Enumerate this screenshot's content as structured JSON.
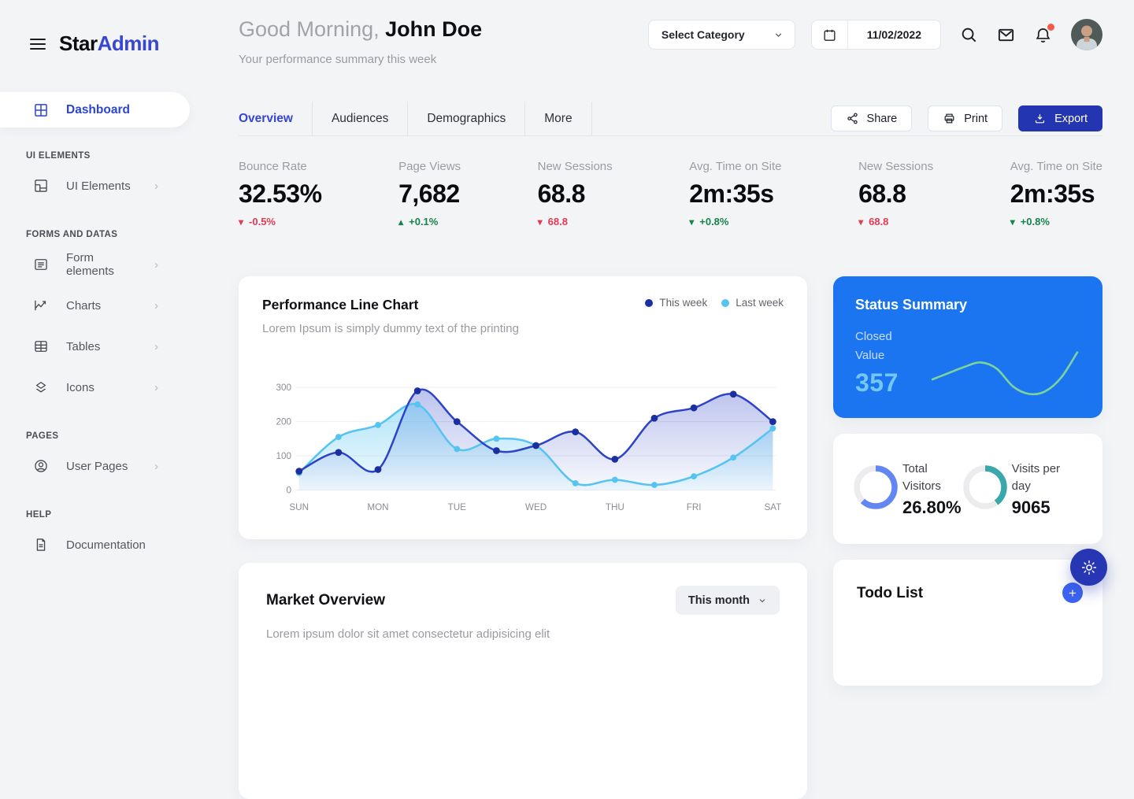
{
  "colors": {
    "accent": "#3646d3",
    "brand_blue": "#3747d2",
    "export_blue": "#2435b1",
    "status_card_blue": "#1c75f0",
    "status_value_blue": "#74c7f2",
    "sparkline_green": "#7cd39b",
    "donut_blue": "#6287f2",
    "donut_teal": "#3aa7ab",
    "negative_red": "#e23a55",
    "positive_green": "#17834d",
    "notification_dot": "#f45b46",
    "page_bg": "#f3f4f6"
  },
  "brand": {
    "star": "Star",
    "admin": "Admin"
  },
  "sidebar": {
    "active_item": {
      "label": "Dashboard",
      "icon": "dashboard-icon"
    },
    "chevron_glyph": "›",
    "sections": [
      {
        "label": "UI ELEMENTS",
        "items": [
          {
            "label": "UI Elements",
            "icon": "ui-elements-icon",
            "has_chevron": true
          }
        ]
      },
      {
        "label": "FORMS AND DATAS",
        "items": [
          {
            "label": "Form elements",
            "icon": "form-elements-icon",
            "has_chevron": true
          },
          {
            "label": "Charts",
            "icon": "charts-icon",
            "has_chevron": true
          },
          {
            "label": "Tables",
            "icon": "tables-icon",
            "has_chevron": true
          },
          {
            "label": "Icons",
            "icon": "icons-icon",
            "has_chevron": true
          }
        ]
      },
      {
        "label": "PAGES",
        "items": [
          {
            "label": "User Pages",
            "icon": "user-pages-icon",
            "has_chevron": true
          }
        ]
      },
      {
        "label": "HELP",
        "items": [
          {
            "label": "Documentation",
            "icon": "documentation-icon",
            "has_chevron": false
          }
        ]
      }
    ]
  },
  "header": {
    "greeting_prefix": "Good Morning,",
    "user_name": "John Doe",
    "subtitle": "Your performance summary this week",
    "category_select": {
      "value": "Select Category"
    },
    "date_field": {
      "value": "11/02/2022"
    }
  },
  "toolbar": {
    "tabs": [
      {
        "label": "Overview",
        "active": true
      },
      {
        "label": "Audiences",
        "active": false
      },
      {
        "label": "Demographics",
        "active": false
      },
      {
        "label": "More",
        "active": false
      }
    ],
    "share_label": "Share",
    "print_label": "Print",
    "export_label": "Export"
  },
  "stats": [
    {
      "label": "Bounce Rate",
      "value": "32.53%",
      "arrow": "▾",
      "change": "-0.5%",
      "tone": "negative"
    },
    {
      "label": "Page Views",
      "value": "7,682",
      "arrow": "▴",
      "change": "+0.1%",
      "tone": "positive"
    },
    {
      "label": "New Sessions",
      "value": "68.8",
      "arrow": "▾",
      "change": "68.8",
      "tone": "negative"
    },
    {
      "label": "Avg. Time on Site",
      "value": "2m:35s",
      "arrow": "▾",
      "change": "+0.8%",
      "tone": "positive"
    },
    {
      "label": "New Sessions",
      "value": "68.8",
      "arrow": "▾",
      "change": "68.8",
      "tone": "negative"
    },
    {
      "label": "Avg. Time on Site",
      "value": "2m:35s",
      "arrow": "▾",
      "change": "+0.8%",
      "tone": "positive"
    }
  ],
  "cards": {
    "performance": {
      "title": "Performance Line Chart",
      "subtitle": "Lorem Ipsum is simply dummy text of the printing",
      "legend": [
        {
          "label": "This week"
        },
        {
          "label": "Last week"
        }
      ]
    },
    "status": {
      "title": "Status Summary",
      "label_line1": "Closed",
      "label_line2": "Value",
      "value": "357"
    },
    "visitors": {
      "donut1": {
        "label": "Total Visitors",
        "value": "26.80%"
      },
      "donut2": {
        "label": "Visits per day",
        "value": "9065"
      }
    },
    "market": {
      "title": "Market Overview",
      "filter_value": "This month",
      "subtitle": "Lorem ipsum dolor sit amet consectetur adipisicing elit"
    },
    "todo": {
      "title": "Todo List",
      "add_glyph": "+"
    }
  },
  "chart_data": [
    {
      "id": "performance-line",
      "type": "line",
      "title": "Performance Line Chart",
      "x_labels": [
        "SUN",
        "MON",
        "TUE",
        "WED",
        "THU",
        "FRI",
        "SAT"
      ],
      "points_per_label": 2,
      "y_ticks": [
        0,
        100,
        200,
        300
      ],
      "ylim": [
        0,
        300
      ],
      "grid": true,
      "legend_position": "top-right",
      "series": [
        {
          "name": "This week",
          "color": "#2e44c6",
          "point_color": "#1b2f9e",
          "values": [
            55,
            110,
            60,
            290,
            200,
            115,
            130,
            170,
            90,
            210,
            240,
            280,
            200
          ]
        },
        {
          "name": "Last week",
          "color": "#55c4f1",
          "point_color": "#55c4f1",
          "values": [
            50,
            155,
            190,
            250,
            120,
            150,
            130,
            20,
            30,
            15,
            40,
            95,
            180
          ]
        }
      ]
    },
    {
      "id": "status-sparkline",
      "type": "line",
      "color": "#7cd39b",
      "values": [
        35,
        45,
        55,
        62,
        52,
        24,
        12,
        16,
        38,
        78
      ]
    },
    {
      "id": "total-visitors-donut",
      "type": "pie",
      "label": "Total Visitors",
      "value_label": "26.80%",
      "arc_percent": 62,
      "color": "#6287f2",
      "track": "#ececef"
    },
    {
      "id": "visits-per-day-donut",
      "type": "pie",
      "label": "Visits per day",
      "value_label": "9065",
      "arc_percent": 40,
      "color": "#3aa7ab",
      "track": "#ececef"
    }
  ]
}
